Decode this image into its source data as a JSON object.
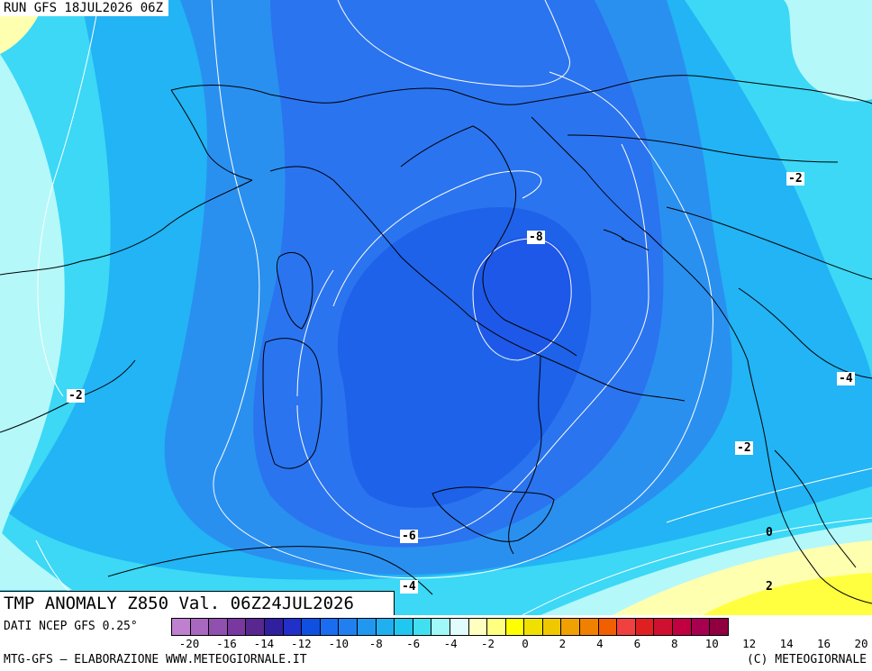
{
  "header": {
    "run_label": "RUN GFS 18JUL2026 06Z"
  },
  "title": "TMP ANOMALY Z850 Val. 06Z24JUL2026",
  "source_label": "DATI NCEP GFS 0.25°",
  "footer": {
    "left": "MTG-GFS – ELABORAZIONE WWW.METEOGIORNALE.IT",
    "right": "(C) METEOGIORNALE"
  },
  "contours": {
    "lbl_m8": "-8",
    "lbl_m6": "-6",
    "lbl_m4_bottom": "-4",
    "lbl_m4_east": "-4",
    "lbl_m2_west": "-2",
    "lbl_m2_northeast": "-2",
    "lbl_m2_southeast": "-2",
    "lbl_0": "0",
    "lbl_2": "2"
  },
  "colorbar": {
    "ticks": [
      "-20",
      "-16",
      "-14",
      "-12",
      "-10",
      "-8",
      "-6",
      "-4",
      "-2",
      "0",
      "2",
      "4",
      "6",
      "8",
      "10",
      "12",
      "14",
      "16",
      "20"
    ],
    "colors": [
      "#c080d0",
      "#a868c0",
      "#9050b0",
      "#7838a0",
      "#582890",
      "#3020a0",
      "#2030c8",
      "#1050e0",
      "#1a6cf0",
      "#2080f0",
      "#2098f0",
      "#20b0f0",
      "#20c8f0",
      "#40e0f0",
      "#a0f8f8",
      "#e0fcfc",
      "#ffffc0",
      "#ffff80",
      "#ffff00",
      "#f0e000",
      "#f0c800",
      "#f0a000",
      "#f08000",
      "#f06000",
      "#f04040",
      "#e02020",
      "#d01030",
      "#c00040",
      "#a80050",
      "#900040"
    ]
  },
  "colors": {
    "anom_m8": "#1e58e8",
    "anom_m6": "#2a74f0",
    "anom_m4": "#2a90f0",
    "anom_m2": "#22b4f4",
    "anom_0": "#3cd8f6",
    "anom_pos_small": "#b4f8fa",
    "anom_p1": "#ffffb0",
    "anom_p2": "#ffff40"
  }
}
